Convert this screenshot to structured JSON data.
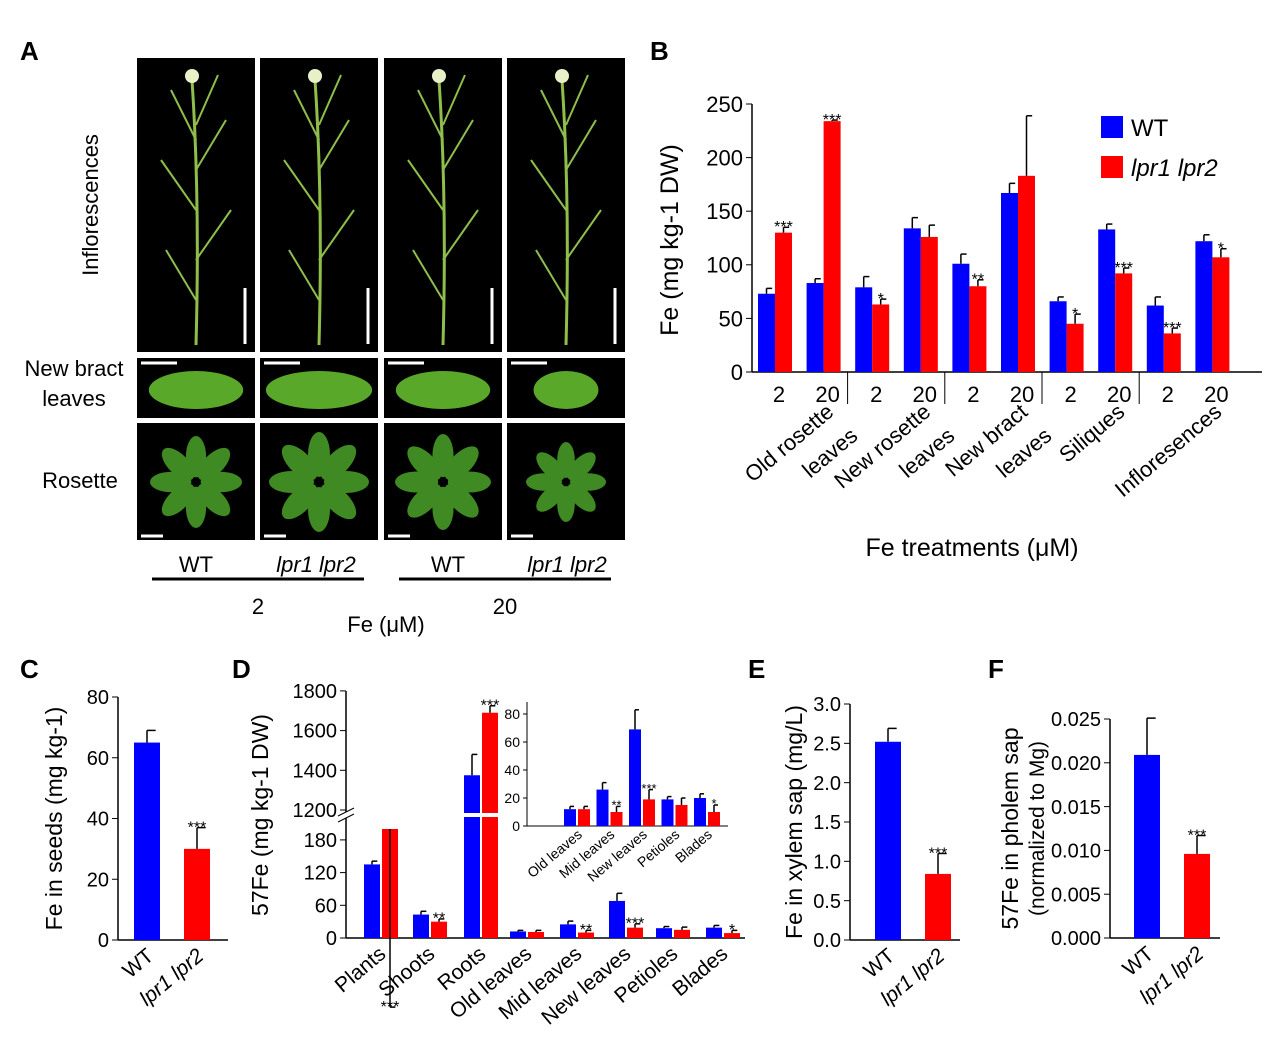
{
  "panel_labels": {
    "a": "A",
    "b": "B",
    "c": "C",
    "d": "D",
    "e": "E",
    "f": "F"
  },
  "panel_a": {
    "row_labels": [
      "Inflorescences",
      "New bract",
      "leaves",
      "Rosette"
    ],
    "genotype_labels": [
      "WT",
      "lpr1 lpr2",
      "WT",
      "lpr1 lpr2"
    ],
    "fe_levels": [
      "2",
      "20"
    ],
    "fe_axis_label": "Fe (μM)"
  },
  "colors": {
    "wt": "#0000ff",
    "mutant": "#ff0000",
    "photo_bg": "#000000",
    "leaf": "#5aa82a"
  },
  "chart_data": [
    {
      "id": "B",
      "type": "bar",
      "ylabel": "Fe  (mg kg-1 DW)",
      "xlabel": "Fe treatments (μM)",
      "ylim": [
        0,
        250
      ],
      "yticks": [
        0,
        50,
        100,
        150,
        200,
        250
      ],
      "groups": [
        "Old rosette leaves",
        "New rosette leaves",
        "New bract leaves",
        "Siliques",
        "Infloresences"
      ],
      "categories": [
        "2",
        "20",
        "2",
        "20",
        "2",
        "20",
        "2",
        "20",
        "2",
        "20"
      ],
      "legend": "top-right",
      "series": [
        {
          "name": "WT",
          "values": [
            73,
            83,
            79,
            134,
            101,
            167,
            66,
            133,
            62,
            122
          ],
          "errors": [
            5,
            4,
            10,
            10,
            9,
            9,
            4,
            5,
            8,
            6
          ],
          "sig": [
            "",
            "",
            "",
            "",
            "",
            "",
            "",
            "",
            "",
            ""
          ]
        },
        {
          "name": "lpr1 lpr2",
          "values": [
            130,
            234,
            63,
            126,
            80,
            183,
            45,
            92,
            36,
            107
          ],
          "errors": [
            5,
            1,
            5,
            11,
            6,
            56,
            9,
            5,
            5,
            8
          ],
          "sig": [
            "***",
            "***",
            "*",
            "",
            "**",
            "",
            "*",
            "***",
            "***",
            "*"
          ]
        }
      ]
    },
    {
      "id": "C",
      "type": "bar",
      "ylabel": "Fe in seeds (mg kg-1)",
      "ylim": [
        0,
        80
      ],
      "yticks": [
        0,
        20,
        40,
        60,
        80
      ],
      "categories": [
        "WT",
        "lpr1 lpr2"
      ],
      "values": [
        65,
        30
      ],
      "errors": [
        4,
        7
      ],
      "sig": [
        "",
        "***"
      ]
    },
    {
      "id": "D",
      "type": "bar",
      "ylabel": "57Fe (mg kg-1 DW)",
      "axis_break": [
        200,
        1200
      ],
      "ylim": [
        0,
        1800
      ],
      "yticks": [
        0,
        60,
        120,
        180,
        1200,
        1400,
        1600,
        1800
      ],
      "categories": [
        "Plants",
        "Shoots",
        "Roots",
        "Old leaves",
        "Mid leaves",
        "New leaves",
        "Petioles",
        "Blades"
      ],
      "series": [
        {
          "name": "WT",
          "values": [
            135,
            43,
            1375,
            12,
            25,
            68,
            18,
            19
          ],
          "errors": [
            6,
            6,
            105,
            2,
            6,
            14,
            3,
            4
          ],
          "sig": [
            "",
            "",
            "",
            "",
            "",
            "",
            "",
            ""
          ]
        },
        {
          "name": "lpr1 lpr2",
          "values": [
            200,
            30,
            1690,
            11,
            10,
            19,
            15,
            9
          ],
          "errors": [
            7,
            5,
            35,
            3,
            4,
            7,
            5,
            5
          ],
          "sig": [
            "***",
            "**",
            "***",
            "",
            "**",
            "***",
            "",
            "*"
          ]
        }
      ],
      "inset": {
        "ylim": [
          0,
          90
        ],
        "yticks": [
          0,
          20,
          40,
          60,
          80
        ],
        "categories": [
          "Old leaves",
          "Mid leaves",
          "New leaves",
          "Petioles",
          "Blades"
        ],
        "series": [
          {
            "name": "WT",
            "values": [
              12,
              26,
              69,
              19,
              20
            ],
            "errors": [
              2,
              5,
              14,
              2,
              3
            ]
          },
          {
            "name": "lpr1 lpr2",
            "values": [
              12,
              10,
              19,
              15,
              10
            ],
            "errors": [
              2,
              4,
              7,
              5,
              5
            ],
            "sig": [
              "",
              "**",
              "***",
              "",
              "*"
            ]
          }
        ]
      }
    },
    {
      "id": "E",
      "type": "bar",
      "ylabel": "Fe in xylem sap (mg/L)",
      "ylim": [
        0,
        3.0
      ],
      "yticks": [
        "0.0",
        "0.5",
        "1.0",
        "1.5",
        "2.0",
        "2.5",
        "3.0"
      ],
      "categories": [
        "WT",
        "lpr1 lpr2"
      ],
      "values": [
        2.52,
        0.84
      ],
      "errors": [
        0.17,
        0.26
      ],
      "sig": [
        "",
        "***"
      ]
    },
    {
      "id": "F",
      "type": "bar",
      "ylabel": "57Fe in pholem sap",
      "ylabel2": "(normalized to Mg)",
      "ylim": [
        0,
        0.025
      ],
      "yticks": [
        "0.000",
        "0.005",
        "0.010",
        "0.015",
        "0.020",
        "0.025"
      ],
      "categories": [
        "WT",
        "lpr1 lpr2"
      ],
      "values": [
        0.0209,
        0.0096
      ],
      "errors": [
        0.0042,
        0.0021
      ],
      "sig": [
        "",
        "***"
      ]
    }
  ]
}
